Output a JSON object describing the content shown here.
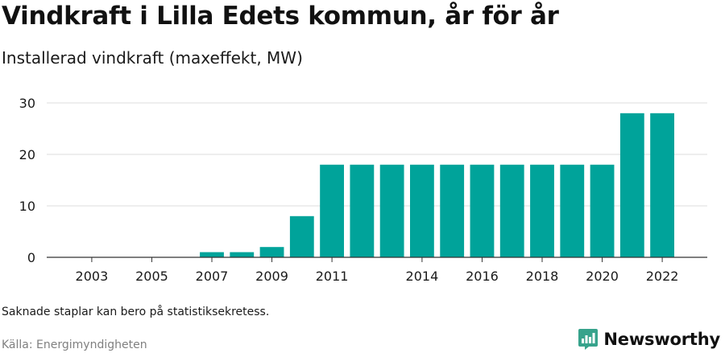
{
  "header": {
    "title": "Vindkraft i Lilla Edets kommun, år för år",
    "subtitle": "Installerad vindkraft (maxeffekt, MW)"
  },
  "footer": {
    "note": "Saknade staplar kan bero på statistiksekretess.",
    "source": "Källa: Energimyndigheten",
    "brand": "Newsworthy",
    "brand_icon": "bar-chart-logo-icon"
  },
  "colors": {
    "bar": "#00a39a",
    "brand": "#37a38c",
    "grid": "#dddddd",
    "axis": "#333333"
  },
  "chart_data": {
    "type": "bar",
    "x": [
      2007,
      2008,
      2009,
      2010,
      2011,
      2012,
      2013,
      2014,
      2015,
      2016,
      2017,
      2018,
      2019,
      2020,
      2021,
      2022
    ],
    "values": [
      1,
      1,
      2,
      8,
      18,
      18,
      18,
      18,
      18,
      18,
      18,
      18,
      18,
      18,
      28,
      28
    ],
    "x_ticks": [
      2003,
      2005,
      2007,
      2009,
      2011,
      2014,
      2016,
      2018,
      2020,
      2022
    ],
    "xlim": [
      2002,
      2023
    ],
    "y_ticks": [
      0,
      10,
      20,
      30
    ],
    "ylim": [
      0,
      30
    ],
    "grid": true,
    "legend": "none",
    "xlabel": "",
    "ylabel": ""
  }
}
